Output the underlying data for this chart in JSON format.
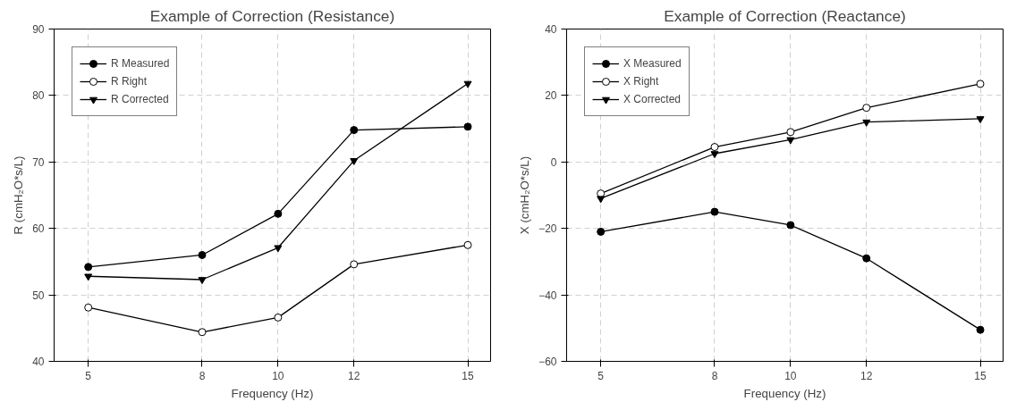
{
  "chart_data": [
    {
      "type": "line",
      "title": "Example of Correction (Resistance)",
      "xlabel": "Frequency (Hz)",
      "ylabel": "R (cmH₂O*s/L)",
      "x": [
        5,
        8,
        10,
        12,
        15
      ],
      "xlim": [
        4.1,
        15.6
      ],
      "xticks": [
        5,
        8,
        10,
        12,
        15
      ],
      "ylim": [
        40,
        90
      ],
      "yticks": [
        40,
        50,
        60,
        70,
        80,
        90
      ],
      "grid": true,
      "legend": "top left",
      "line_style": "solid",
      "series": [
        {
          "name": "R Measured",
          "color": "#000000",
          "marker": "circle",
          "values": [
            54.2,
            56.0,
            62.2,
            74.8,
            75.3
          ]
        },
        {
          "name": "R Right",
          "color": "#000000",
          "marker": "circle-open",
          "values": [
            48.1,
            44.4,
            46.6,
            54.6,
            57.5
          ]
        },
        {
          "name": "R Corrected",
          "color": "#000000",
          "marker": "triangle",
          "values": [
            52.8,
            52.3,
            57.1,
            70.2,
            81.8
          ]
        }
      ]
    },
    {
      "type": "line",
      "title": "Example of Correction (Reactance)",
      "xlabel": "Frequency (Hz)",
      "ylabel": "X (cmH₂O*s/L)",
      "x": [
        5,
        8,
        10,
        12,
        15
      ],
      "xlim": [
        4.1,
        15.6
      ],
      "xticks": [
        5,
        8,
        10,
        12,
        15
      ],
      "ylim": [
        -60,
        40
      ],
      "yticks": [
        -60,
        -40,
        -20,
        0,
        20,
        40
      ],
      "grid": true,
      "legend": "top left",
      "line_style": "solid",
      "series": [
        {
          "name": "X Measured",
          "color": "#000000",
          "marker": "circle",
          "values": [
            -21,
            -15,
            -19,
            -29,
            -50.5
          ]
        },
        {
          "name": "X Right",
          "color": "#000000",
          "marker": "circle-open",
          "values": [
            -9.5,
            4.5,
            9,
            16.3,
            23.5
          ]
        },
        {
          "name": "X Corrected",
          "color": "#000000",
          "marker": "triangle",
          "values": [
            -11,
            2.5,
            6.7,
            12,
            13
          ]
        }
      ]
    }
  ]
}
